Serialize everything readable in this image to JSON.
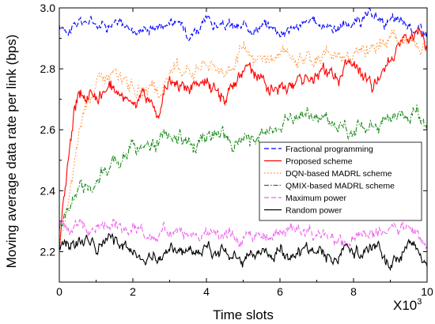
{
  "chart_data": {
    "type": "line",
    "title": "",
    "xlabel": "Time slots",
    "ylabel": "Moving average data rate per link (bps)",
    "x_multiplier_label": "X10",
    "x_multiplier_exp": "3",
    "xlim": [
      0,
      10
    ],
    "ylim": [
      2.1,
      3.0
    ],
    "xticks": [
      0,
      2,
      4,
      6,
      8,
      10
    ],
    "yticks": [
      2.2,
      2.4,
      2.6,
      2.8,
      3.0
    ],
    "xtick_labels": [
      "0",
      "2",
      "4",
      "6",
      "8",
      "10"
    ],
    "ytick_labels": [
      "2.2",
      "2.4",
      "2.6",
      "2.8",
      "3.0"
    ],
    "grid": false,
    "legend_position": "center-right",
    "series": [
      {
        "name": "Fractional programming",
        "color": "#0000ff",
        "dash": "dash",
        "x": [
          0,
          0.5,
          1,
          1.5,
          2,
          2.5,
          3,
          3.5,
          4,
          4.5,
          5,
          5.5,
          6,
          6.5,
          7,
          7.5,
          8,
          8.5,
          9,
          9.5,
          10
        ],
        "y": [
          2.93,
          2.95,
          2.96,
          2.95,
          2.93,
          2.94,
          2.96,
          2.93,
          2.95,
          2.94,
          2.93,
          2.95,
          2.93,
          2.94,
          2.95,
          2.94,
          2.95,
          2.97,
          2.95,
          2.94,
          2.92
        ]
      },
      {
        "name": "Proposed scheme",
        "color": "#ff0000",
        "dash": "solid",
        "x": [
          0,
          0.2,
          0.4,
          0.5,
          0.7,
          1,
          1.5,
          2,
          2.5,
          2.7,
          3,
          3.5,
          4,
          4.5,
          5,
          5.5,
          6,
          6.5,
          7,
          7.5,
          8,
          8.5,
          9,
          9.5,
          10
        ],
        "y": [
          2.22,
          2.46,
          2.66,
          2.7,
          2.71,
          2.72,
          2.73,
          2.71,
          2.69,
          2.65,
          2.77,
          2.73,
          2.75,
          2.73,
          2.79,
          2.77,
          2.71,
          2.79,
          2.79,
          2.78,
          2.8,
          2.72,
          2.85,
          2.91,
          2.86
        ]
      },
      {
        "name": "DQN-based MADRL scheme",
        "color": "#ff8c2a",
        "dash": "dot",
        "x": [
          0,
          0.3,
          0.5,
          0.7,
          1,
          1.5,
          2,
          2.5,
          2.7,
          3,
          3.5,
          4,
          4.5,
          5,
          5.5,
          6,
          6.5,
          7,
          7.5,
          8,
          8.5,
          9,
          9.5,
          10
        ],
        "y": [
          2.22,
          2.38,
          2.55,
          2.68,
          2.76,
          2.78,
          2.74,
          2.72,
          2.68,
          2.79,
          2.81,
          2.83,
          2.8,
          2.84,
          2.82,
          2.85,
          2.85,
          2.84,
          2.86,
          2.85,
          2.86,
          2.9,
          2.88,
          2.86
        ]
      },
      {
        "name": "QMIX-based MADRL scheme",
        "color": "#1a8a1a",
        "dash": "dashdot",
        "x": [
          0,
          0.3,
          0.6,
          1,
          1.5,
          2,
          2.5,
          3,
          3.5,
          4,
          4.5,
          5,
          5.5,
          6,
          6.5,
          7,
          7.5,
          8,
          8.5,
          9,
          9.5,
          10
        ],
        "y": [
          2.27,
          2.35,
          2.41,
          2.44,
          2.5,
          2.53,
          2.56,
          2.58,
          2.57,
          2.58,
          2.56,
          2.55,
          2.58,
          2.62,
          2.66,
          2.63,
          2.62,
          2.6,
          2.62,
          2.65,
          2.66,
          2.64
        ]
      },
      {
        "name": "Maximum power",
        "color": "#ee66ee",
        "dash": "dash",
        "x": [
          0,
          0.5,
          1,
          1.5,
          2,
          2.5,
          3,
          3.5,
          4,
          4.5,
          5,
          5.5,
          6,
          6.5,
          7,
          7.5,
          8,
          8.5,
          9,
          9.5,
          10
        ],
        "y": [
          2.28,
          2.29,
          2.28,
          2.3,
          2.27,
          2.25,
          2.26,
          2.27,
          2.27,
          2.26,
          2.24,
          2.26,
          2.26,
          2.27,
          2.26,
          2.23,
          2.24,
          2.26,
          2.25,
          2.27,
          2.22
        ]
      },
      {
        "name": "Random power",
        "color": "#000000",
        "dash": "solid",
        "x": [
          0,
          0.5,
          1,
          1.5,
          2,
          2.5,
          3,
          3.5,
          4,
          4.5,
          5,
          5.5,
          6,
          6.5,
          7,
          7.5,
          8,
          8.5,
          9,
          9.5,
          10
        ],
        "y": [
          2.23,
          2.22,
          2.21,
          2.24,
          2.2,
          2.18,
          2.21,
          2.19,
          2.22,
          2.2,
          2.19,
          2.21,
          2.2,
          2.21,
          2.2,
          2.18,
          2.19,
          2.22,
          2.17,
          2.22,
          2.17
        ]
      }
    ]
  }
}
